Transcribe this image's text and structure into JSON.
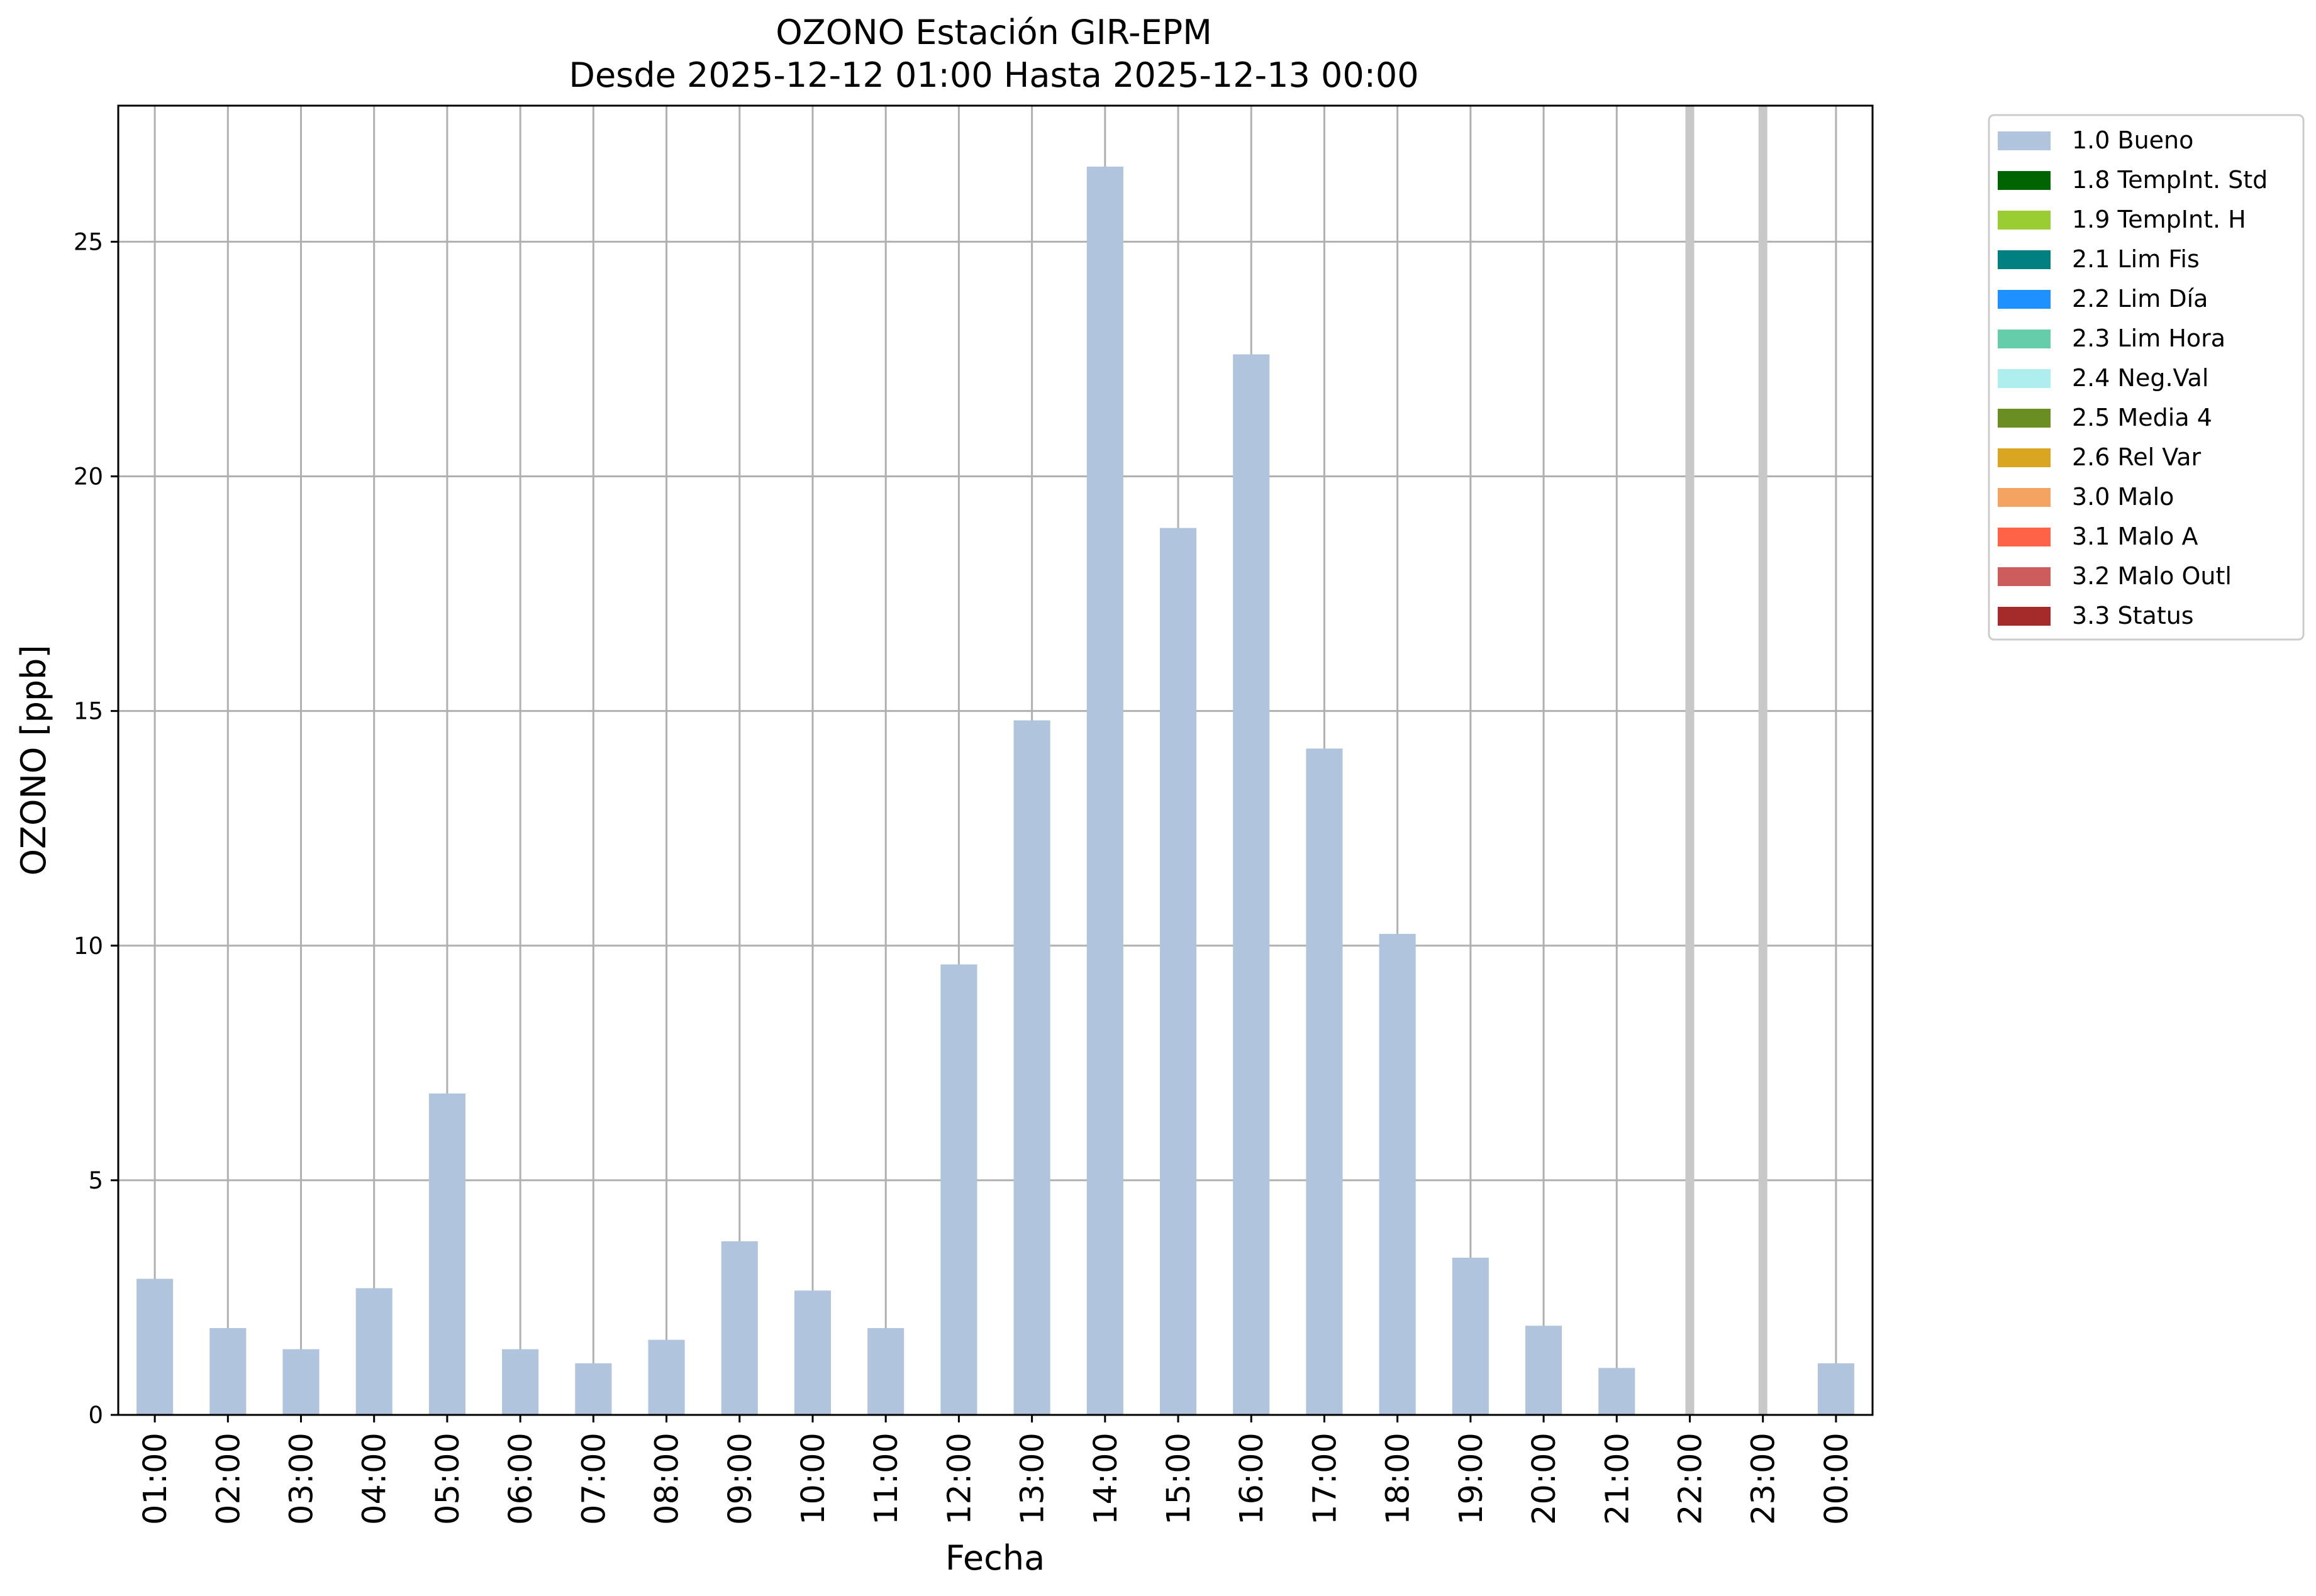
{
  "chart_data": {
    "type": "bar",
    "title": "OZONO Estación GIR-EPM",
    "subtitle": "Desde 2025-12-12 01:00 Hasta 2025-12-13 00:00",
    "xlabel": "Fecha",
    "ylabel": "OZONO [ppb]",
    "categories": [
      "01:00",
      "02:00",
      "03:00",
      "04:00",
      "05:00",
      "06:00",
      "07:00",
      "08:00",
      "09:00",
      "10:00",
      "11:00",
      "12:00",
      "13:00",
      "14:00",
      "15:00",
      "16:00",
      "17:00",
      "18:00",
      "19:00",
      "20:00",
      "21:00",
      "22:00",
      "23:00",
      "00:00"
    ],
    "series": [
      {
        "name": "1.0 Bueno",
        "color": "#b0c4de",
        "values": [
          2.9,
          1.85,
          1.4,
          2.7,
          6.85,
          1.4,
          1.1,
          1.6,
          3.7,
          2.65,
          1.85,
          9.6,
          14.8,
          26.6,
          18.9,
          22.6,
          14.2,
          10.25,
          3.35,
          1.9,
          1.0,
          null,
          null,
          1.1
        ]
      }
    ],
    "missing_markers": [
      "22:00",
      "23:00"
    ],
    "ylim": [
      0,
      27.9
    ],
    "yticks": [
      0,
      5,
      10,
      15,
      20,
      25
    ],
    "grid": true,
    "legend": {
      "placement": "outside-right-top",
      "entries": [
        {
          "label": "1.0 Bueno",
          "color": "#b0c4de"
        },
        {
          "label": "1.8 TempInt. Std",
          "color": "#006400"
        },
        {
          "label": "1.9 TempInt. H",
          "color": "#9acd32"
        },
        {
          "label": "2.1 Lim Fis",
          "color": "#008080"
        },
        {
          "label": "2.2 Lim Día",
          "color": "#1e90ff"
        },
        {
          "label": "2.3 Lim Hora",
          "color": "#66cdaa"
        },
        {
          "label": "2.4 Neg.Val",
          "color": "#afeeee"
        },
        {
          "label": "2.5 Media 4",
          "color": "#6b8e23"
        },
        {
          "label": "2.6 Rel Var",
          "color": "#daa520"
        },
        {
          "label": "3.0 Malo",
          "color": "#f4a460"
        },
        {
          "label": "3.1 Malo A",
          "color": "#ff6347"
        },
        {
          "label": "3.2 Malo Outl",
          "color": "#cd5c5c"
        },
        {
          "label": "3.3 Status",
          "color": "#a52a2a"
        }
      ]
    }
  }
}
